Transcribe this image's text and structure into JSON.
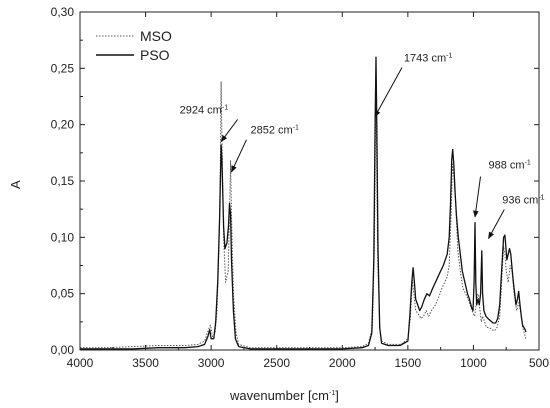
{
  "chart_data": {
    "type": "line",
    "xlabel": "wavenumber [cm",
    "xlabel_sup": "-1",
    "xlabel_end": "]",
    "ylabel": "A",
    "xlim": [
      4000,
      500
    ],
    "ylim": [
      0,
      0.3
    ],
    "x_reversed": true,
    "grid": false,
    "legend_position": "top-left",
    "x_ticks": [
      4000,
      3500,
      3000,
      2500,
      2000,
      1500,
      1000,
      500
    ],
    "x_tick_labels": [
      "4000",
      "3500",
      "3000",
      "2500",
      "2000",
      "1500",
      "1000",
      "500"
    ],
    "y_ticks": [
      0.0,
      0.05,
      0.1,
      0.15,
      0.2,
      0.25,
      0.3
    ],
    "y_tick_labels": [
      "0,00",
      "0,05",
      "0,10",
      "0,15",
      "0,20",
      "0,25",
      "0,30"
    ],
    "series": [
      {
        "name": "MSO",
        "style": "dotted",
        "color": "#555555",
        "points": [
          [
            4000,
            0.002
          ],
          [
            3800,
            0.002
          ],
          [
            3600,
            0.003
          ],
          [
            3400,
            0.004
          ],
          [
            3200,
            0.004
          ],
          [
            3100,
            0.005
          ],
          [
            3050,
            0.008
          ],
          [
            3020,
            0.018
          ],
          [
            3005,
            0.022
          ],
          [
            2990,
            0.012
          ],
          [
            2970,
            0.015
          ],
          [
            2955,
            0.035
          ],
          [
            2940,
            0.09
          ],
          [
            2930,
            0.16
          ],
          [
            2924,
            0.238
          ],
          [
            2918,
            0.19
          ],
          [
            2905,
            0.1
          ],
          [
            2890,
            0.06
          ],
          [
            2870,
            0.07
          ],
          [
            2860,
            0.12
          ],
          [
            2852,
            0.168
          ],
          [
            2845,
            0.12
          ],
          [
            2830,
            0.05
          ],
          [
            2810,
            0.015
          ],
          [
            2790,
            0.005
          ],
          [
            2700,
            0.002
          ],
          [
            2500,
            0.002
          ],
          [
            2200,
            0.002
          ],
          [
            2000,
            0.002
          ],
          [
            1850,
            0.003
          ],
          [
            1800,
            0.006
          ],
          [
            1770,
            0.02
          ],
          [
            1755,
            0.09
          ],
          [
            1748,
            0.18
          ],
          [
            1743,
            0.245
          ],
          [
            1738,
            0.18
          ],
          [
            1730,
            0.08
          ],
          [
            1715,
            0.02
          ],
          [
            1700,
            0.008
          ],
          [
            1650,
            0.005
          ],
          [
            1550,
            0.005
          ],
          [
            1500,
            0.01
          ],
          [
            1480,
            0.03
          ],
          [
            1465,
            0.062
          ],
          [
            1455,
            0.05
          ],
          [
            1440,
            0.035
          ],
          [
            1420,
            0.032
          ],
          [
            1400,
            0.028
          ],
          [
            1380,
            0.03
          ],
          [
            1360,
            0.035
          ],
          [
            1340,
            0.03
          ],
          [
            1320,
            0.035
          ],
          [
            1290,
            0.04
          ],
          [
            1260,
            0.048
          ],
          [
            1240,
            0.055
          ],
          [
            1220,
            0.06
          ],
          [
            1200,
            0.065
          ],
          [
            1185,
            0.075
          ],
          [
            1170,
            0.12
          ],
          [
            1160,
            0.165
          ],
          [
            1150,
            0.155
          ],
          [
            1135,
            0.13
          ],
          [
            1120,
            0.09
          ],
          [
            1100,
            0.07
          ],
          [
            1080,
            0.055
          ],
          [
            1060,
            0.05
          ],
          [
            1040,
            0.045
          ],
          [
            1025,
            0.04
          ],
          [
            1010,
            0.035
          ],
          [
            1000,
            0.032
          ],
          [
            990,
            0.03
          ],
          [
            975,
            0.045
          ],
          [
            965,
            0.05
          ],
          [
            950,
            0.035
          ],
          [
            940,
            0.025
          ],
          [
            930,
            0.03
          ],
          [
            915,
            0.025
          ],
          [
            900,
            0.02
          ],
          [
            880,
            0.02
          ],
          [
            860,
            0.018
          ],
          [
            840,
            0.017
          ],
          [
            820,
            0.02
          ],
          [
            800,
            0.03
          ],
          [
            785,
            0.06
          ],
          [
            770,
            0.092
          ],
          [
            760,
            0.085
          ],
          [
            750,
            0.07
          ],
          [
            735,
            0.06
          ],
          [
            720,
            0.075
          ],
          [
            705,
            0.07
          ],
          [
            690,
            0.05
          ],
          [
            670,
            0.035
          ],
          [
            655,
            0.042
          ],
          [
            640,
            0.035
          ],
          [
            625,
            0.02
          ],
          [
            610,
            0.014
          ],
          [
            600,
            0.01
          ]
        ]
      },
      {
        "name": "PSO",
        "style": "solid",
        "color": "#111111",
        "points": [
          [
            4000,
            0.001
          ],
          [
            3800,
            0.001
          ],
          [
            3600,
            0.001
          ],
          [
            3400,
            0.002
          ],
          [
            3200,
            0.002
          ],
          [
            3100,
            0.003
          ],
          [
            3050,
            0.005
          ],
          [
            3025,
            0.012
          ],
          [
            3010,
            0.018
          ],
          [
            3000,
            0.01
          ],
          [
            2980,
            0.01
          ],
          [
            2965,
            0.025
          ],
          [
            2950,
            0.06
          ],
          [
            2935,
            0.12
          ],
          [
            2924,
            0.182
          ],
          [
            2918,
            0.17
          ],
          [
            2905,
            0.11
          ],
          [
            2895,
            0.09
          ],
          [
            2880,
            0.095
          ],
          [
            2868,
            0.11
          ],
          [
            2860,
            0.13
          ],
          [
            2852,
            0.12
          ],
          [
            2845,
            0.08
          ],
          [
            2830,
            0.035
          ],
          [
            2815,
            0.01
          ],
          [
            2790,
            0.003
          ],
          [
            2700,
            0.001
          ],
          [
            2500,
            0.001
          ],
          [
            2200,
            0.001
          ],
          [
            2000,
            0.001
          ],
          [
            1850,
            0.002
          ],
          [
            1800,
            0.004
          ],
          [
            1775,
            0.015
          ],
          [
            1760,
            0.08
          ],
          [
            1750,
            0.2
          ],
          [
            1743,
            0.26
          ],
          [
            1737,
            0.2
          ],
          [
            1728,
            0.09
          ],
          [
            1715,
            0.02
          ],
          [
            1700,
            0.006
          ],
          [
            1650,
            0.004
          ],
          [
            1560,
            0.004
          ],
          [
            1500,
            0.008
          ],
          [
            1485,
            0.03
          ],
          [
            1470,
            0.06
          ],
          [
            1460,
            0.073
          ],
          [
            1450,
            0.06
          ],
          [
            1440,
            0.045
          ],
          [
            1425,
            0.04
          ],
          [
            1410,
            0.035
          ],
          [
            1395,
            0.038
          ],
          [
            1375,
            0.045
          ],
          [
            1355,
            0.05
          ],
          [
            1335,
            0.048
          ],
          [
            1310,
            0.055
          ],
          [
            1290,
            0.06
          ],
          [
            1270,
            0.065
          ],
          [
            1250,
            0.07
          ],
          [
            1230,
            0.075
          ],
          [
            1215,
            0.08
          ],
          [
            1200,
            0.085
          ],
          [
            1185,
            0.1
          ],
          [
            1175,
            0.13
          ],
          [
            1165,
            0.17
          ],
          [
            1158,
            0.178
          ],
          [
            1150,
            0.165
          ],
          [
            1140,
            0.14
          ],
          [
            1130,
            0.12
          ],
          [
            1115,
            0.1
          ],
          [
            1100,
            0.085
          ],
          [
            1085,
            0.07
          ],
          [
            1065,
            0.06
          ],
          [
            1045,
            0.05
          ],
          [
            1030,
            0.045
          ],
          [
            1015,
            0.038
          ],
          [
            1003,
            0.035
          ],
          [
            995,
            0.06
          ],
          [
            988,
            0.113
          ],
          [
            982,
            0.06
          ],
          [
            975,
            0.04
          ],
          [
            965,
            0.045
          ],
          [
            955,
            0.04
          ],
          [
            945,
            0.05
          ],
          [
            936,
            0.088
          ],
          [
            930,
            0.05
          ],
          [
            920,
            0.035
          ],
          [
            905,
            0.03
          ],
          [
            890,
            0.028
          ],
          [
            870,
            0.026
          ],
          [
            850,
            0.024
          ],
          [
            830,
            0.024
          ],
          [
            815,
            0.028
          ],
          [
            800,
            0.04
          ],
          [
            785,
            0.07
          ],
          [
            770,
            0.1
          ],
          [
            760,
            0.102
          ],
          [
            752,
            0.09
          ],
          [
            745,
            0.08
          ],
          [
            735,
            0.085
          ],
          [
            725,
            0.09
          ],
          [
            715,
            0.085
          ],
          [
            705,
            0.072
          ],
          [
            695,
            0.06
          ],
          [
            685,
            0.05
          ],
          [
            675,
            0.04
          ],
          [
            665,
            0.045
          ],
          [
            655,
            0.052
          ],
          [
            645,
            0.04
          ],
          [
            635,
            0.03
          ],
          [
            625,
            0.022
          ],
          [
            615,
            0.02
          ],
          [
            605,
            0.018
          ],
          [
            600,
            0.016
          ]
        ]
      }
    ],
    "annotations": [
      {
        "id": "a2924",
        "text": "2924 cm",
        "sup": "-1",
        "tip": [
          2924,
          0.185
        ],
        "label_at": [
          3240,
          0.21
        ]
      },
      {
        "id": "a2852",
        "text": "2852 cm",
        "sup": "-1",
        "tip": [
          2845,
          0.158
        ],
        "label_at": [
          2700,
          0.192
        ]
      },
      {
        "id": "a1743",
        "text": "1743 cm",
        "sup": "-1",
        "tip": [
          1752,
          0.207
        ],
        "label_at": [
          1530,
          0.256
        ]
      },
      {
        "id": "a988",
        "text": "988 cm",
        "sup": "-1",
        "tip": [
          988,
          0.118
        ],
        "label_at": [
          885,
          0.161
        ]
      },
      {
        "id": "a936",
        "text": "936 cm",
        "sup": "-1",
        "tip": [
          885,
          0.099
        ],
        "label_at": [
          780,
          0.13
        ]
      }
    ]
  }
}
